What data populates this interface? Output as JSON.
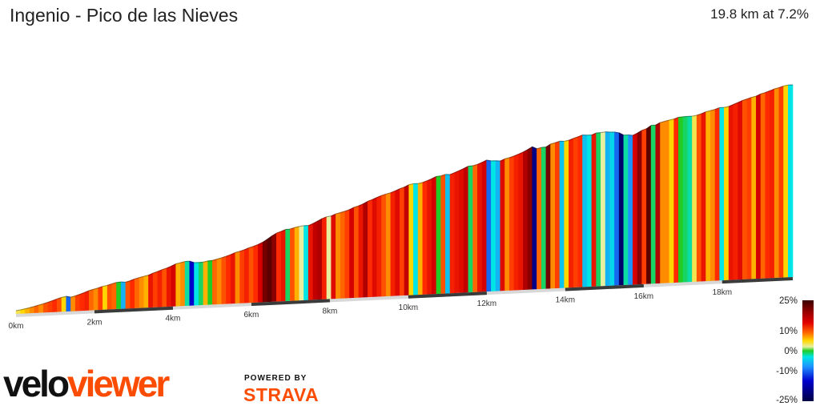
{
  "header": {
    "title": "Ingenio - Pico de las Nieves",
    "summary": "19.8 km at 7.2%"
  },
  "chart_data": {
    "type": "area",
    "title": "Ingenio - Pico de las Nieves",
    "subtitle": "19.8 km at 7.2%",
    "xlabel": "",
    "ylabel": "",
    "distance_km": 19.8,
    "x_ticks": [
      "0km",
      "2km",
      "4km",
      "6km",
      "8km",
      "10km",
      "12km",
      "14km",
      "16km",
      "18km"
    ],
    "x_tick_values": [
      0,
      2,
      4,
      6,
      8,
      10,
      12,
      14,
      16,
      18
    ],
    "profile_gradients_pct": [
      3,
      4,
      5,
      6,
      7,
      6,
      8,
      9,
      10,
      8,
      4,
      -10,
      6,
      9,
      10,
      11,
      7,
      6,
      9,
      4,
      8,
      7,
      0,
      -6,
      8,
      10,
      7,
      6,
      5,
      12,
      9,
      11,
      8,
      12,
      14,
      5,
      6,
      -2,
      -15,
      -3,
      -1,
      5,
      0,
      7,
      6,
      8,
      10,
      12,
      6,
      9,
      11,
      8,
      10,
      14,
      20,
      22,
      18,
      10,
      12,
      -1,
      8,
      5,
      2,
      -3,
      12,
      15,
      16,
      11,
      2,
      13,
      6,
      7,
      9,
      14,
      8,
      12,
      16,
      10,
      13,
      11,
      8,
      6,
      11,
      13,
      9,
      15,
      4,
      -3,
      5,
      10,
      12,
      14,
      0,
      8,
      -5,
      11,
      12,
      13,
      15,
      -1,
      7,
      12,
      14,
      -10,
      -3,
      -6,
      13,
      6,
      9,
      11,
      12,
      16,
      18,
      -20,
      7,
      -1,
      20,
      6,
      9,
      -5,
      4,
      11,
      9,
      10,
      -5,
      -3,
      12,
      -1,
      2,
      -6,
      -4,
      -10,
      -22,
      -2,
      -8,
      14,
      18,
      9,
      22,
      -1,
      16,
      6,
      6,
      4,
      10,
      0,
      -1,
      -2,
      3,
      8,
      12,
      5,
      6,
      10,
      -3,
      4,
      12,
      11,
      13,
      8,
      9,
      5,
      14,
      7,
      10,
      11,
      6,
      9,
      4,
      -3
    ],
    "legend": {
      "position": "right",
      "ticks": [
        "25%",
        "10%",
        "0%",
        "-10%",
        "-25%"
      ],
      "tick_values": [
        25,
        10,
        0,
        -10,
        -25
      ]
    }
  },
  "branding": {
    "logo_part1": "velo",
    "logo_part2": "viewer",
    "powered_by": "POWERED BY",
    "strava": "STRAVA"
  }
}
